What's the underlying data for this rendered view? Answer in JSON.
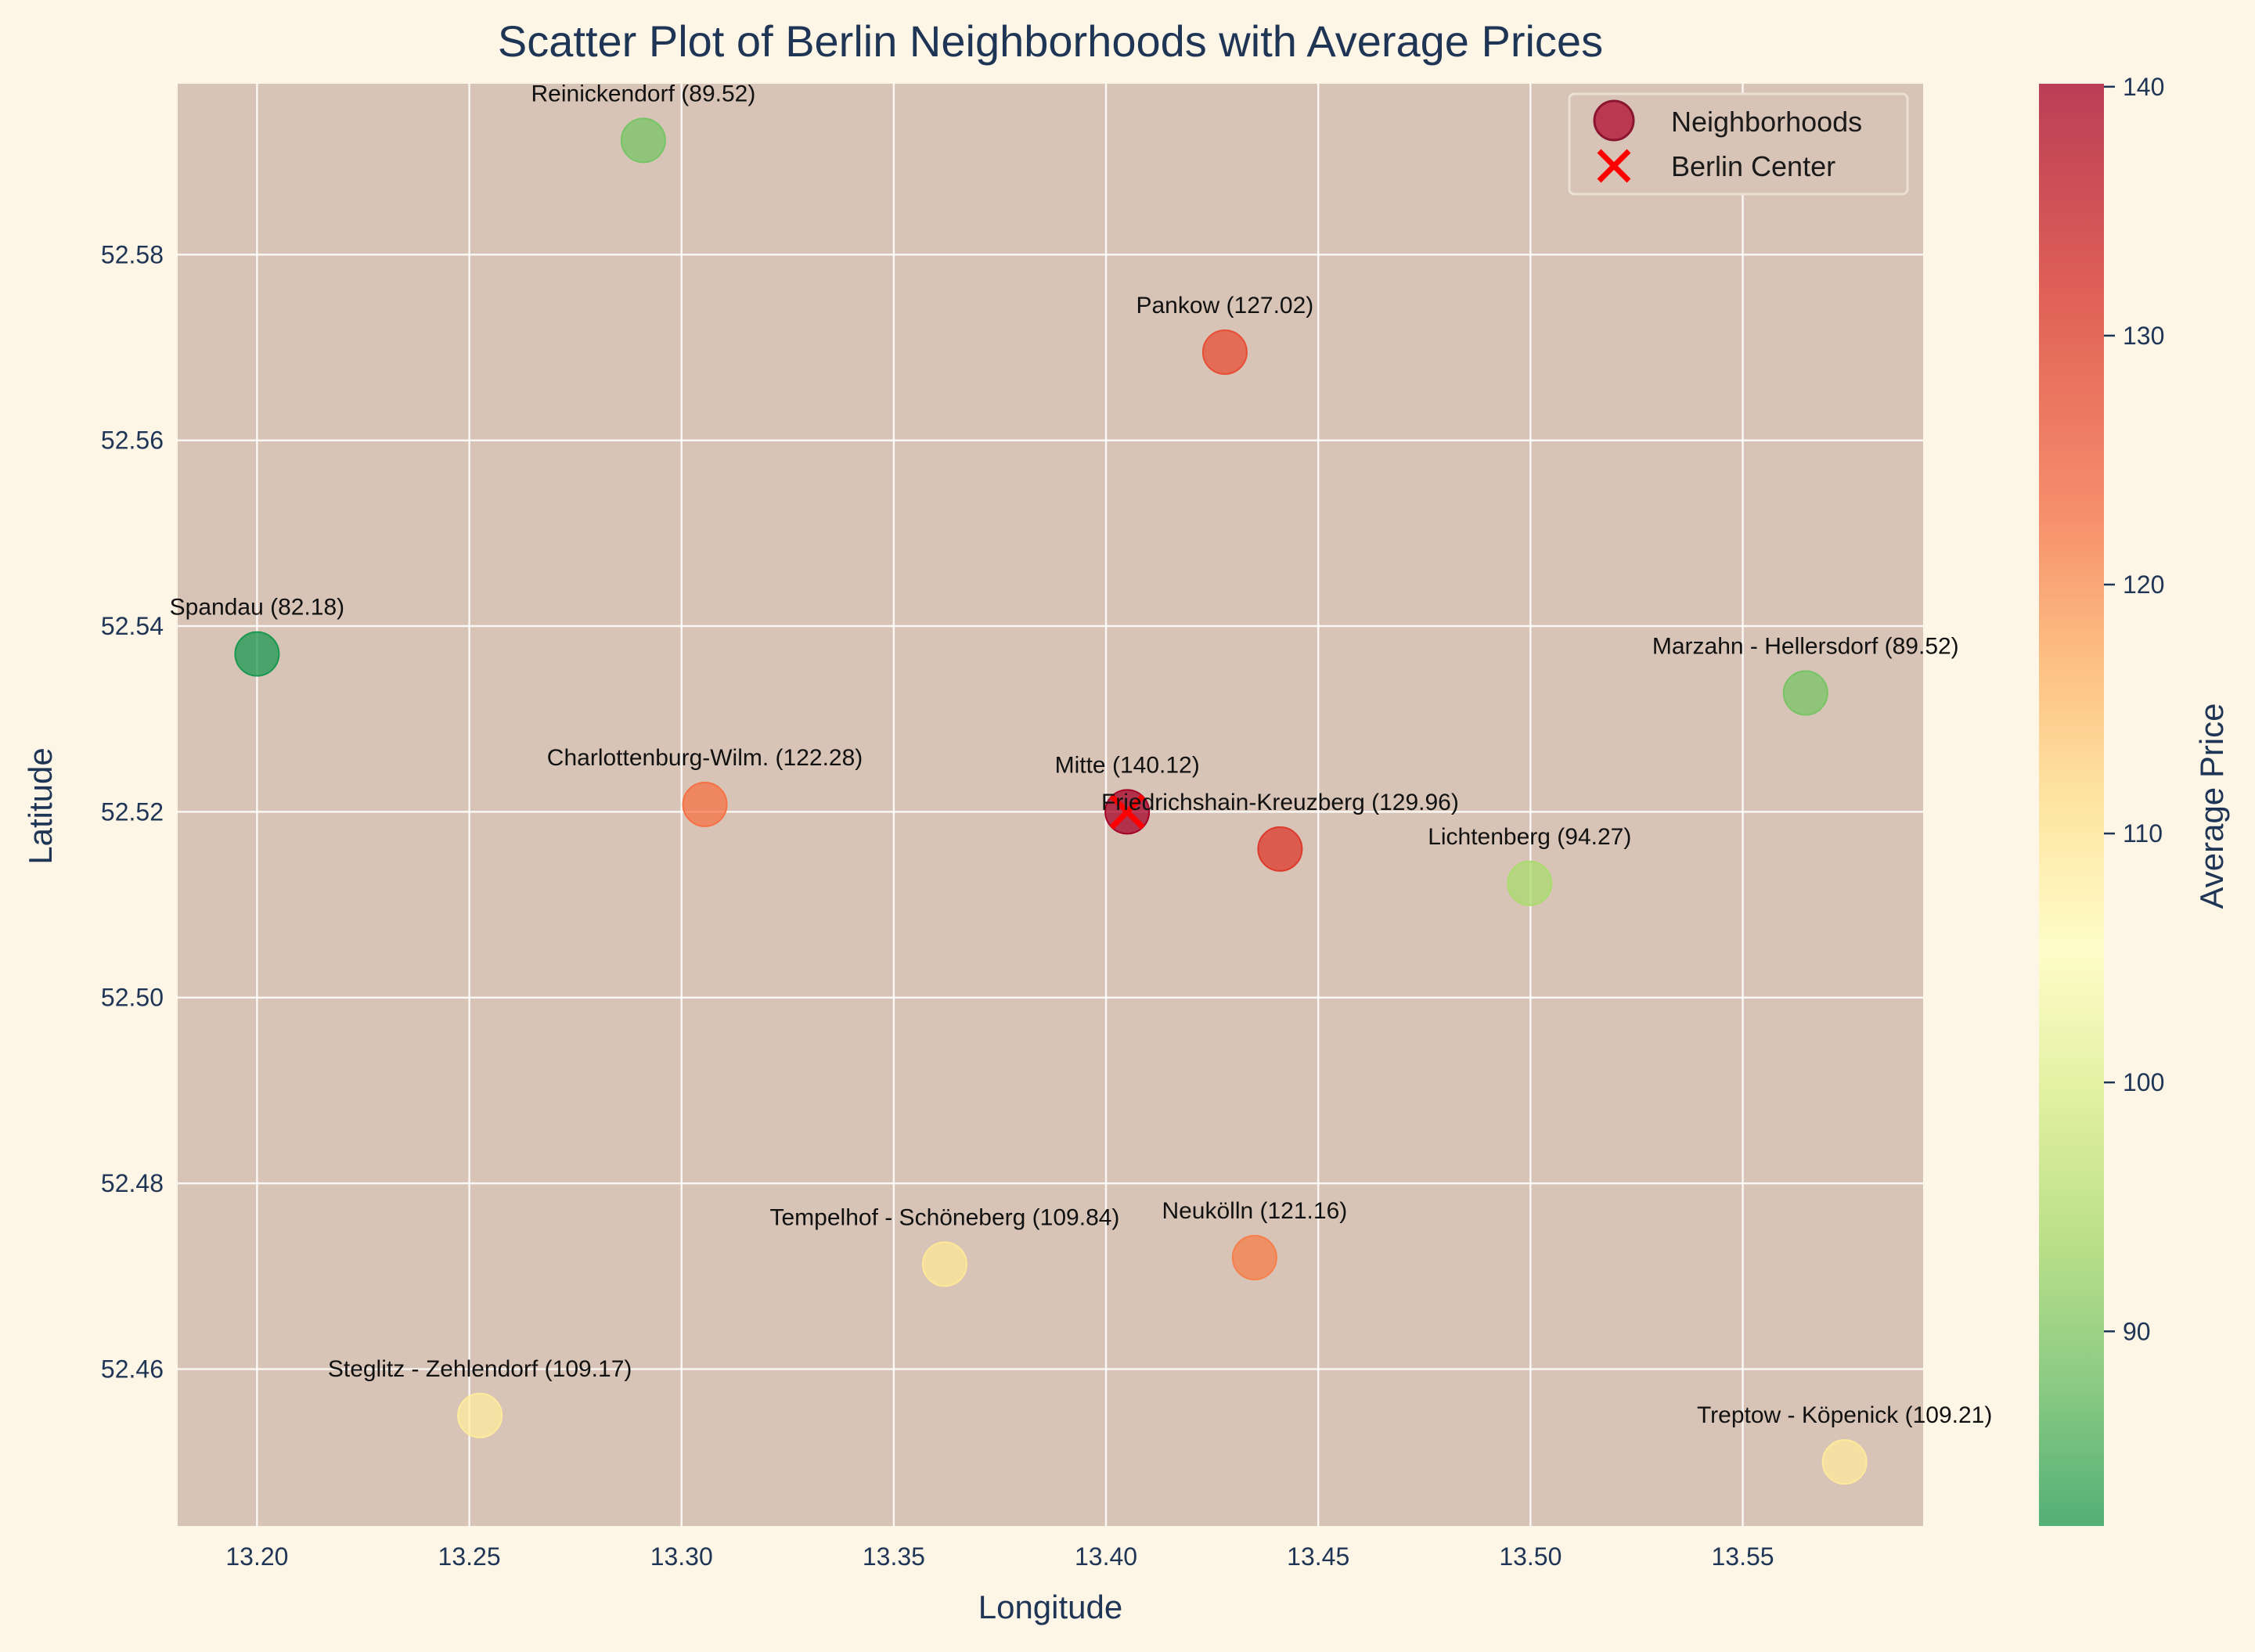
{
  "chart_data": {
    "type": "scatter",
    "title": "Scatter Plot of Berlin Neighborhoods with Average Prices",
    "xlabel": "Longitude",
    "ylabel": "Latitude",
    "xlim": [
      13.1813,
      13.5925
    ],
    "ylim": [
      52.4431,
      52.5984
    ],
    "xticks": [
      13.2,
      13.25,
      13.3,
      13.35,
      13.4,
      13.45,
      13.5,
      13.55
    ],
    "yticks": [
      52.46,
      52.48,
      52.5,
      52.52,
      52.54,
      52.56,
      52.58
    ],
    "xtick_labels": [
      "13.20",
      "13.25",
      "13.30",
      "13.35",
      "13.40",
      "13.45",
      "13.50",
      "13.55"
    ],
    "ytick_labels": [
      "52.46",
      "52.48",
      "52.50",
      "52.52",
      "52.54",
      "52.56",
      "52.58"
    ],
    "grid": true,
    "background_color": "#d8c4b6",
    "figure_color": "#fdf5e6",
    "text_color": "#1f3556",
    "colormap": "RdYlGn_r",
    "colorbar": {
      "label": "Average Price",
      "min": 82.18,
      "max": 140.12,
      "ticks": [
        90,
        100,
        110,
        120,
        130,
        140
      ],
      "tick_labels": [
        "90",
        "100",
        "110",
        "120",
        "130",
        "140"
      ]
    },
    "legend": {
      "position": "top-right",
      "entries": [
        {
          "label": "Neighborhoods",
          "marker": "circle",
          "color": "#b5203e"
        },
        {
          "label": "Berlin Center",
          "marker": "x",
          "color": "#ff0000"
        }
      ]
    },
    "points": [
      {
        "name": "Mitte",
        "label": "Mitte (140.12)",
        "lon": 13.405,
        "lat": 52.52,
        "price": 140.12
      },
      {
        "name": "Friedrichshain-Kreuzberg",
        "label": "Friedrichshain-Kreuzberg (129.96)",
        "lon": 13.441,
        "lat": 52.516,
        "price": 129.96
      },
      {
        "name": "Pankow",
        "label": "Pankow (127.02)",
        "lon": 13.428,
        "lat": 52.5695,
        "price": 127.02
      },
      {
        "name": "Charlottenburg-Wilm.",
        "label": "Charlottenburg-Wilm. (122.28)",
        "lon": 13.3055,
        "lat": 52.5208,
        "price": 122.28
      },
      {
        "name": "Neukölln",
        "label": "Neukölln (121.16)",
        "lon": 13.435,
        "lat": 52.472,
        "price": 121.16
      },
      {
        "name": "Tempelhof - Schöneberg",
        "label": "Tempelhof - Schöneberg (109.84)",
        "lon": 13.362,
        "lat": 52.4713,
        "price": 109.84
      },
      {
        "name": "Treptow - Köpenick",
        "label": "Treptow - Köpenick (109.21)",
        "lon": 13.574,
        "lat": 52.45,
        "price": 109.21
      },
      {
        "name": "Steglitz - Zehlendorf",
        "label": "Steglitz - Zehlendorf (109.17)",
        "lon": 13.2525,
        "lat": 52.455,
        "price": 109.17
      },
      {
        "name": "Lichtenberg",
        "label": "Lichtenberg (94.27)",
        "lon": 13.4998,
        "lat": 52.5123,
        "price": 94.27
      },
      {
        "name": "Reinickendorf",
        "label": "Reinickendorf (89.52)",
        "lon": 13.291,
        "lat": 52.5923,
        "price": 89.52
      },
      {
        "name": "Marzahn - Hellersdorf",
        "label": "Marzahn - Hellersdorf (89.52)",
        "lon": 13.5648,
        "lat": 52.5328,
        "price": 89.52
      },
      {
        "name": "Spandau",
        "label": "Spandau (82.18)",
        "lon": 13.2,
        "lat": 52.537,
        "price": 82.18
      }
    ],
    "center": {
      "name": "Berlin Center",
      "lon": 13.405,
      "lat": 52.52
    }
  }
}
